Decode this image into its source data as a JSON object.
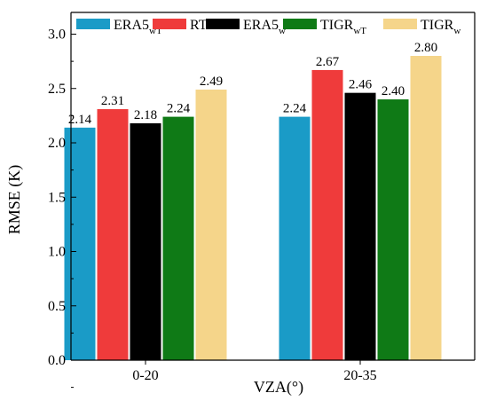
{
  "chart_data": {
    "type": "bar",
    "categories": [
      "0-20",
      "20-35"
    ],
    "series": [
      {
        "name": "ERA5",
        "sub": "wT",
        "color": "#1a9bc7",
        "values": [
          2.14,
          2.24
        ]
      },
      {
        "name": "RTE",
        "sub": "",
        "color": "#ef3b3b",
        "values": [
          2.31,
          2.67
        ]
      },
      {
        "name": "ERA5",
        "sub": "w",
        "color": "#000000",
        "values": [
          2.18,
          2.46
        ]
      },
      {
        "name": "TIGR",
        "sub": "wT",
        "color": "#0f7a16",
        "values": [
          2.24,
          2.4
        ]
      },
      {
        "name": "TIGR",
        "sub": "w",
        "color": "#f5d58a",
        "values": [
          2.49,
          2.8
        ]
      }
    ],
    "value_labels": [
      [
        "2.14",
        "2.24"
      ],
      [
        "2.31",
        "2.67"
      ],
      [
        "2.18",
        "2.46"
      ],
      [
        "2.24",
        "2.40"
      ],
      [
        "2.49",
        "2.80"
      ]
    ],
    "xlabel": "VZA(°)",
    "ylabel": "RMSE (K)",
    "ylim": [
      0,
      3.2
    ],
    "yticks": [
      "0.0",
      "0.5",
      "1.0",
      "1.5",
      "2.0",
      "2.5",
      "3.0"
    ],
    "legend_position": "top",
    "grid": false
  }
}
